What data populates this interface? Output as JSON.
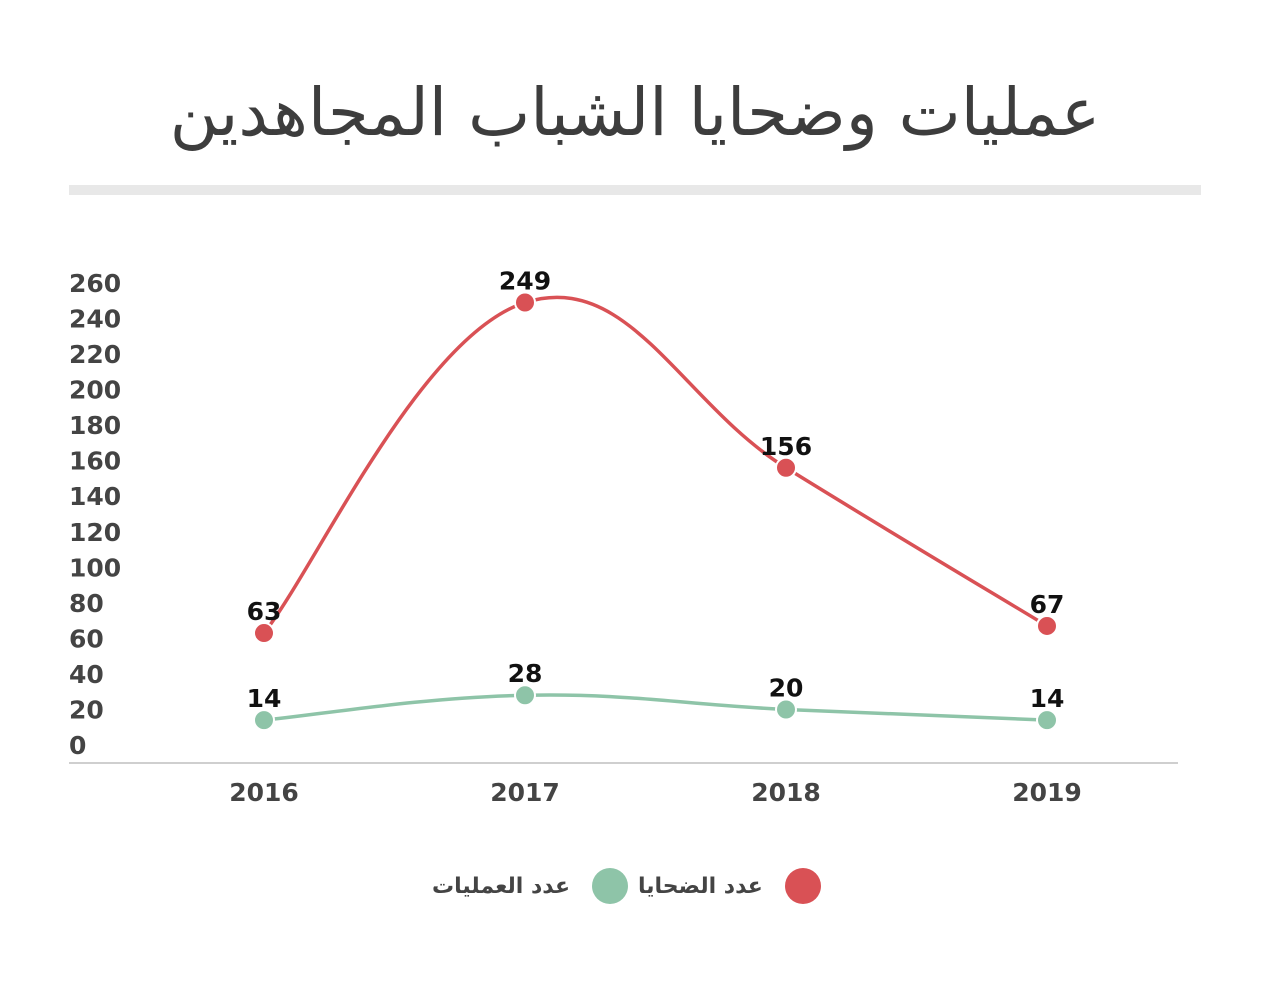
{
  "page": {
    "title": "عمليات وضحايا الشباب المجاهدين"
  },
  "colors": {
    "victims": "#d95155",
    "operations": "#8ec4a8",
    "axis_text": "#444444",
    "label_text": "#111111",
    "baseline": "#cfcfcf",
    "title_rule": "#e8e8e8"
  },
  "chart_data": {
    "type": "line",
    "categories": [
      "2016",
      "2017",
      "2018",
      "2019"
    ],
    "series": [
      {
        "name": "عدد الضحايا",
        "key": "victims",
        "values": [
          63,
          249,
          156,
          67
        ]
      },
      {
        "name": "عدد العمليات",
        "key": "operations",
        "values": [
          14,
          28,
          20,
          14
        ]
      }
    ],
    "y_ticks": [
      0,
      20,
      40,
      60,
      80,
      100,
      120,
      140,
      160,
      180,
      200,
      220,
      240,
      260
    ],
    "ylim": [
      0,
      260
    ],
    "smooth": true,
    "grid": false,
    "legend_position": "bottom-center"
  },
  "legend": {
    "victims_label": "عدد الضحايا",
    "operations_label": "عدد العمليات"
  }
}
